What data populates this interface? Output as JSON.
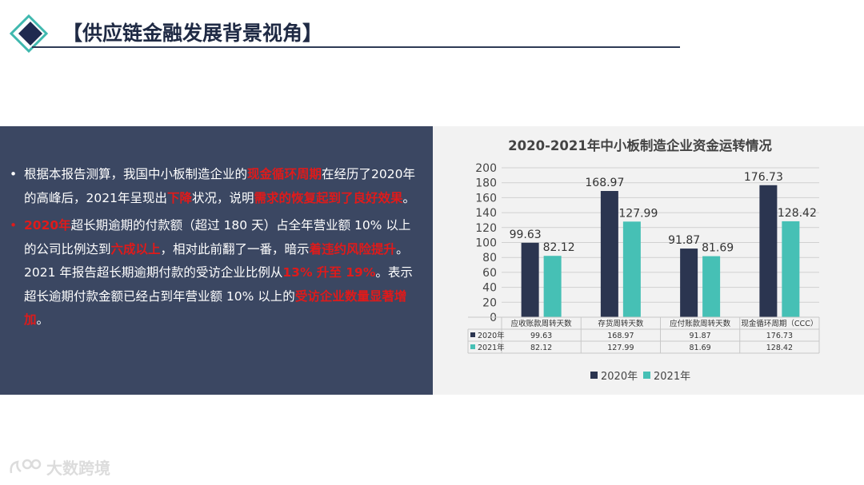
{
  "header": {
    "title": "【供应链金融发展背景视角】"
  },
  "bullets": [
    {
      "dot_color": "white",
      "segments": [
        {
          "text": "根据本报告测算，我国中小板制造企业的",
          "hl": false
        },
        {
          "text": "现金循环周期",
          "hl": true
        },
        {
          "text": "在经历了2020年的高峰后，2021年呈现出",
          "hl": false
        },
        {
          "text": "下降",
          "hl": true
        },
        {
          "text": "状况，说明",
          "hl": false
        },
        {
          "text": "需求的恢复起到了良好效果",
          "hl": true
        },
        {
          "text": "。",
          "hl": false
        }
      ]
    },
    {
      "dot_color": "red",
      "segments": [
        {
          "text": "2020年",
          "hl": true
        },
        {
          "text": "超长期逾期的付款额（超过 180 天）占全年营业额 10% 以上的公司比例达到",
          "hl": false
        },
        {
          "text": "六成以上",
          "hl": true
        },
        {
          "text": "，相对此前翻了一番，暗示",
          "hl": false
        },
        {
          "text": "着违约风险提升",
          "hl": true
        },
        {
          "text": "。2021 年报告超长期逾期付款的受访企业比例从",
          "hl": false
        },
        {
          "text": "13% 升至 19%",
          "hl": true
        },
        {
          "text": "。表示超长逾期付款金额已经占到年营业额 10% 以上的",
          "hl": false
        },
        {
          "text": "受访企业数量显著增加",
          "hl": true
        },
        {
          "text": "。",
          "hl": false
        }
      ]
    }
  ],
  "chart_data": {
    "type": "bar",
    "title": "2020-2021年中小板制造企业资金运转情况",
    "categories": [
      "应收账款周转天数",
      "存货周转天数",
      "应付账款周转天数",
      "现金循环周期（CCC）"
    ],
    "series": [
      {
        "name": "2020年",
        "values": [
          99.63,
          168.97,
          91.87,
          176.73
        ],
        "color": "#2b3550"
      },
      {
        "name": "2021年",
        "values": [
          82.12,
          127.99,
          81.69,
          128.42
        ],
        "color": "#46c0b5"
      }
    ],
    "y_ticks": [
      "0",
      "20",
      "40",
      "60",
      "80",
      "100",
      "120",
      "140",
      "160",
      "180",
      "200"
    ],
    "ylim": [
      0,
      200
    ],
    "grid": true,
    "legend_position": "bottom",
    "data_table": true
  },
  "watermark": {
    "text": "大数跨境"
  }
}
